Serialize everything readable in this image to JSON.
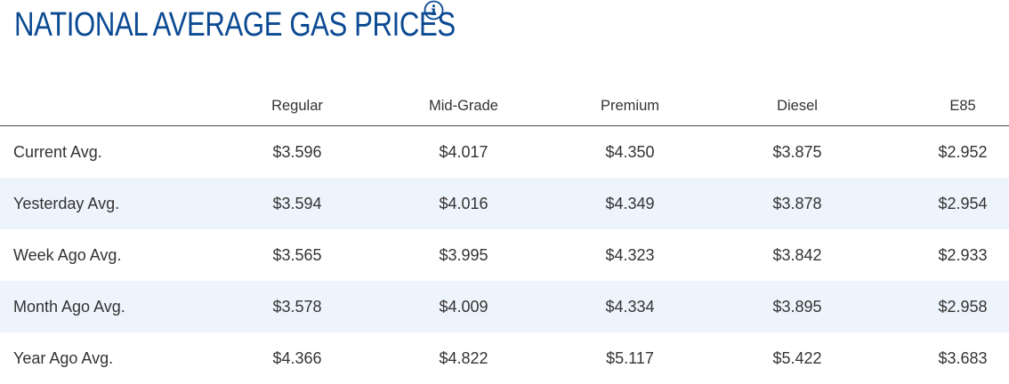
{
  "title": "NATIONAL AVERAGE GAS PRICES",
  "info_icon": "info-circle-icon",
  "colors": {
    "title": "#0b4a93",
    "alt_row_bg": "#eef4fb",
    "text": "#333333"
  },
  "columns": [
    "Regular",
    "Mid-Grade",
    "Premium",
    "Diesel",
    "E85"
  ],
  "rows": [
    {
      "label": "Current Avg.",
      "values": [
        "$3.596",
        "$4.017",
        "$4.350",
        "$3.875",
        "$2.952"
      ]
    },
    {
      "label": "Yesterday Avg.",
      "values": [
        "$3.594",
        "$4.016",
        "$4.349",
        "$3.878",
        "$2.954"
      ]
    },
    {
      "label": "Week Ago Avg.",
      "values": [
        "$3.565",
        "$3.995",
        "$4.323",
        "$3.842",
        "$2.933"
      ]
    },
    {
      "label": "Month Ago Avg.",
      "values": [
        "$3.578",
        "$4.009",
        "$4.334",
        "$3.895",
        "$2.958"
      ]
    },
    {
      "label": "Year Ago Avg.",
      "values": [
        "$4.366",
        "$4.822",
        "$5.117",
        "$5.422",
        "$3.683"
      ]
    }
  ]
}
